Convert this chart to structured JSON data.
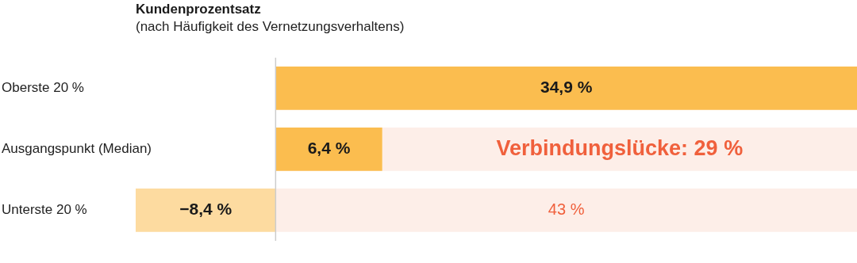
{
  "chart_data": {
    "type": "bar",
    "orientation": "horizontal",
    "stacked": true,
    "title": "Kundenprozentsatz",
    "subtitle": "(nach Häufigkeit des Vernetzungsverhaltens)",
    "categories": [
      "Oberste 20 %",
      "Ausgangspunkt (Median)",
      "Unterste 20 %"
    ],
    "series": [
      {
        "values": [
          34.9,
          6.4,
          -8.4
        ],
        "colors": [
          "#fbbd4f",
          "#fbbd4f",
          "#fddba0"
        ],
        "value_labels": [
          "34,9 %",
          "6,4 %",
          "−8,4 %"
        ]
      },
      {
        "values": [
          null,
          28.5,
          34.9
        ],
        "color": "#fdeee8"
      }
    ],
    "legend": false,
    "ref_lines": [
      {
        "axis": "x",
        "value": 0,
        "color": "#cccccc"
      }
    ],
    "annotations": [
      {
        "text": "Verbindungslücke: 29 %",
        "x": 20.65,
        "y": "Ausgangspunkt (Median)"
      },
      {
        "text": "43 %",
        "x": 17.45,
        "y": "Unterste 20 %"
      }
    ]
  }
}
